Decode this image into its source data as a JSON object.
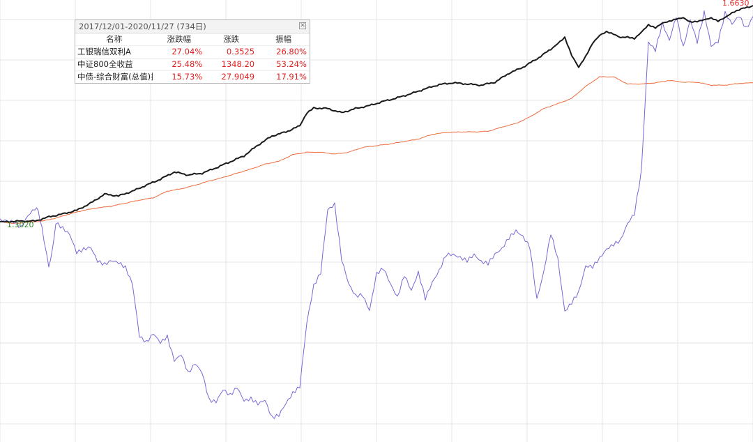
{
  "chart_data": {
    "type": "line",
    "x_range": [
      "2017/12/01",
      "2020/11/27"
    ],
    "y_min_label": "1.3020",
    "y_max_label": "1.6630",
    "grid": true,
    "series": [
      {
        "name": "工银瑞信双利A",
        "color": "#1a1a1a",
        "x": [
          0,
          10,
          30,
          50,
          70,
          90,
          110,
          130,
          150,
          170,
          190,
          210,
          230,
          250,
          270,
          290,
          310,
          330,
          350,
          370,
          390,
          410,
          430,
          440,
          450,
          470,
          490,
          510,
          530,
          550,
          570,
          590,
          610,
          630,
          650,
          670,
          690,
          710,
          730,
          750,
          770,
          790,
          800,
          810,
          820,
          830,
          840,
          850,
          860,
          870,
          880,
          890,
          900,
          910,
          920,
          930,
          940,
          950,
          960,
          970,
          980,
          990,
          1000,
          1010,
          1020,
          1030,
          1040,
          1050,
          1060,
          1080
        ],
        "values": [
          1.302,
          1.302,
          1.303,
          1.303,
          1.31,
          1.315,
          1.321,
          1.333,
          1.348,
          1.345,
          1.353,
          1.363,
          1.373,
          1.385,
          1.38,
          1.383,
          1.392,
          1.402,
          1.412,
          1.43,
          1.445,
          1.452,
          1.462,
          1.483,
          1.492,
          1.491,
          1.484,
          1.491,
          1.496,
          1.503,
          1.509,
          1.516,
          1.524,
          1.531,
          1.534,
          1.532,
          1.53,
          1.535,
          1.55,
          1.56,
          1.574,
          1.59,
          1.6,
          1.61,
          1.58,
          1.56,
          1.578,
          1.6,
          1.613,
          1.619,
          1.615,
          1.609,
          1.61,
          1.607,
          1.618,
          1.63,
          1.625,
          1.633,
          1.636,
          1.64,
          1.642,
          1.635,
          1.636,
          1.639,
          1.642,
          1.637,
          1.643,
          1.651,
          1.656,
          1.663
        ]
      },
      {
        "name": "中证800全收益",
        "color": "#7a66d6",
        "x": [
          0,
          10,
          20,
          30,
          40,
          50,
          55,
          60,
          70,
          75,
          80,
          90,
          100,
          110,
          120,
          130,
          140,
          150,
          160,
          170,
          180,
          190,
          200,
          210,
          220,
          230,
          240,
          250,
          260,
          270,
          280,
          290,
          300,
          310,
          320,
          330,
          340,
          350,
          360,
          370,
          380,
          390,
          400,
          410,
          420,
          430,
          440,
          450,
          460,
          470,
          480,
          490,
          500,
          510,
          520,
          530,
          540,
          550,
          560,
          570,
          580,
          590,
          600,
          610,
          620,
          630,
          640,
          650,
          660,
          670,
          680,
          690,
          700,
          710,
          720,
          730,
          740,
          750,
          760,
          770,
          780,
          790,
          800,
          810,
          820,
          830,
          840,
          850,
          860,
          870,
          880,
          890,
          900,
          910,
          920,
          930,
          940,
          950,
          960,
          970,
          980,
          990,
          1000,
          1010,
          1020,
          1030,
          1040,
          1050,
          1060,
          1070,
          1080
        ],
        "values": [
          1.302,
          1.301,
          1.299,
          1.289,
          1.309,
          1.321,
          1.323,
          1.289,
          1.224,
          1.255,
          1.298,
          1.289,
          1.279,
          1.249,
          1.255,
          1.259,
          1.236,
          1.231,
          1.238,
          1.235,
          1.227,
          1.2,
          1.113,
          1.103,
          1.118,
          1.103,
          1.113,
          1.073,
          1.083,
          1.052,
          1.068,
          1.052,
          1.006,
          1.003,
          1.023,
          1.013,
          1.026,
          1.003,
          1.006,
          0.997,
          1.003,
          0.973,
          0.977,
          0.996,
          1.013,
          1.024,
          1.13,
          1.192,
          1.214,
          1.319,
          1.328,
          1.237,
          1.196,
          1.176,
          1.178,
          1.152,
          1.214,
          1.224,
          1.198,
          1.176,
          1.214,
          1.188,
          1.219,
          1.176,
          1.203,
          1.223,
          1.25,
          1.25,
          1.245,
          1.24,
          1.25,
          1.238,
          1.235,
          1.25,
          1.259,
          1.277,
          1.288,
          1.278,
          1.26,
          1.172,
          1.218,
          1.282,
          1.239,
          1.15,
          1.165,
          1.182,
          1.225,
          1.224,
          1.238,
          1.253,
          1.261,
          1.268,
          1.296,
          1.313,
          1.385,
          1.6,
          1.587,
          1.632,
          1.604,
          1.645,
          1.593,
          1.64,
          1.603,
          1.653,
          1.597,
          1.605,
          1.653,
          1.635,
          1.649,
          1.628,
          1.645
        ]
      },
      {
        "name": "中债-综合财富(总值)指数",
        "color": "#f06a3a",
        "x": [
          0,
          20,
          40,
          60,
          80,
          100,
          120,
          140,
          160,
          180,
          200,
          220,
          240,
          260,
          280,
          300,
          320,
          340,
          360,
          380,
          400,
          420,
          440,
          460,
          480,
          500,
          520,
          540,
          560,
          580,
          600,
          620,
          640,
          660,
          680,
          700,
          720,
          740,
          760,
          780,
          800,
          820,
          840,
          860,
          880,
          900,
          920,
          940,
          960,
          980,
          1000,
          1020,
          1040,
          1060,
          1080
        ],
        "values": [
          1.302,
          1.299,
          1.301,
          1.303,
          1.308,
          1.315,
          1.321,
          1.325,
          1.328,
          1.333,
          1.338,
          1.342,
          1.353,
          1.357,
          1.363,
          1.37,
          1.376,
          1.383,
          1.39,
          1.398,
          1.403,
          1.414,
          1.418,
          1.418,
          1.415,
          1.418,
          1.426,
          1.429,
          1.432,
          1.436,
          1.44,
          1.448,
          1.451,
          1.452,
          1.452,
          1.453,
          1.46,
          1.466,
          1.477,
          1.491,
          1.499,
          1.508,
          1.528,
          1.544,
          1.544,
          1.532,
          1.532,
          1.534,
          1.538,
          1.535,
          1.535,
          1.53,
          1.53,
          1.533,
          1.534
        ]
      }
    ]
  },
  "panel": {
    "date_range": "2017/12/01-2020/11/27 (734日)",
    "close_icon": "close-icon",
    "headers": {
      "name": "名称",
      "pct": "涨跌幅",
      "change": "涨跌",
      "amplitude": "振幅"
    },
    "rows": [
      {
        "name": "工银瑞信双利A",
        "pct": "27.04%",
        "change": "0.3525",
        "amplitude": "26.80%"
      },
      {
        "name": "中证800全收益",
        "pct": "25.48%",
        "change": "1348.20",
        "amplitude": "53.24%"
      },
      {
        "name": "中债-综合财富(总值)指",
        "pct": "15.73%",
        "change": "27.9049",
        "amplitude": "17.91%"
      }
    ],
    "value_color": "#e02020"
  }
}
